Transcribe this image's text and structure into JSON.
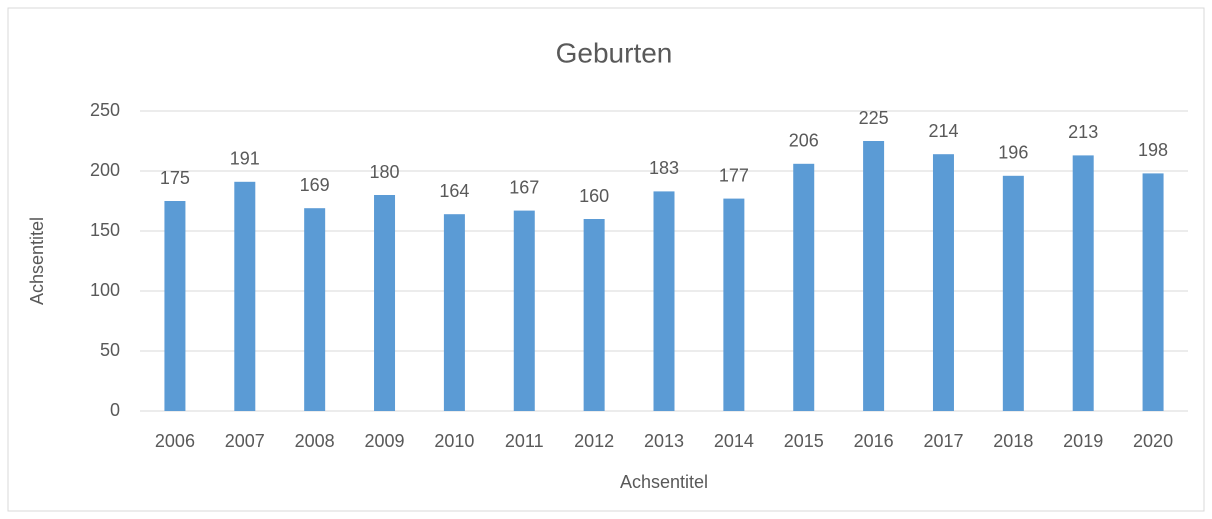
{
  "chart_data": {
    "type": "bar",
    "title": "Geburten",
    "x_label": "Achsentitel",
    "y_label": "Achsentitel",
    "categories": [
      "2006",
      "2007",
      "2008",
      "2009",
      "2010",
      "2011",
      "2012",
      "2013",
      "2014",
      "2015",
      "2016",
      "2017",
      "2018",
      "2019",
      "2020"
    ],
    "values": [
      175,
      191,
      169,
      180,
      164,
      167,
      160,
      183,
      177,
      206,
      225,
      214,
      196,
      213,
      198
    ],
    "color": "#5b9bd5",
    "ylim": [
      0,
      250
    ],
    "yticks": [
      0,
      50,
      100,
      150,
      200,
      250
    ],
    "grid": true,
    "data_labels": true
  }
}
